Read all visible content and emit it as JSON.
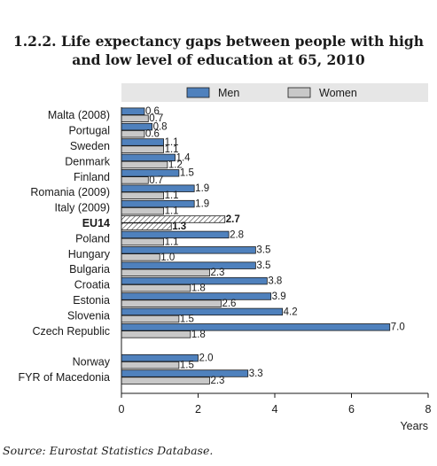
{
  "title_line1": "1.2.2.  Life expectancy gaps between people with high",
  "title_line2": "and low level of education at 65, 2010",
  "source": "Source:  Eurostat Statistics Database.",
  "colors": {
    "men": "#4f81bd",
    "women": "#c8c8c8",
    "legend_band": "#e6e6e6"
  },
  "chart_data": {
    "type": "bar",
    "orientation": "horizontal",
    "categories": [
      "Malta (2008)",
      "Portugal",
      "Sweden",
      "Denmark",
      "Finland",
      "Romania (2009)",
      "Italy (2009)",
      "EU14",
      "Poland",
      "Hungary",
      "Bulgaria",
      "Croatia",
      "Estonia",
      "Slovenia",
      "Czech Republic",
      "Norway",
      "FYR of Macedonia"
    ],
    "highlight_category": "EU14",
    "series": [
      {
        "name": "Men",
        "values": [
          0.6,
          0.8,
          1.1,
          1.4,
          1.5,
          1.9,
          1.9,
          2.7,
          2.8,
          3.5,
          3.5,
          3.8,
          3.9,
          4.2,
          7.0,
          2.0,
          3.3
        ],
        "labels": [
          "0.6",
          "0.8",
          "1.1",
          "1.4",
          "1.5",
          "1.9",
          "1.9",
          "2.7",
          "2.8",
          "3.5",
          "3.5",
          "3.8",
          "3.9",
          "4.2",
          "7.0",
          "2.0",
          "3.3"
        ]
      },
      {
        "name": "Women",
        "values": [
          0.7,
          0.6,
          1.1,
          1.2,
          0.7,
          1.1,
          1.1,
          1.3,
          1.1,
          1.0,
          2.3,
          1.8,
          2.6,
          1.5,
          1.8,
          1.5,
          2.3
        ],
        "labels": [
          "0.7",
          "0.6",
          "1.1",
          "1.2",
          "0.7",
          "1.1",
          "1.1",
          "1.3",
          "1.1",
          "1.0",
          "2.3",
          "1.8",
          "2.6",
          "1.5",
          "1.8",
          "1.5",
          "2.3"
        ]
      }
    ],
    "xlim": [
      0,
      8
    ],
    "xticks": [
      "0",
      "2",
      "4",
      "6",
      "8"
    ],
    "xlabel": "Years",
    "legend_position": "top",
    "grid": false
  }
}
